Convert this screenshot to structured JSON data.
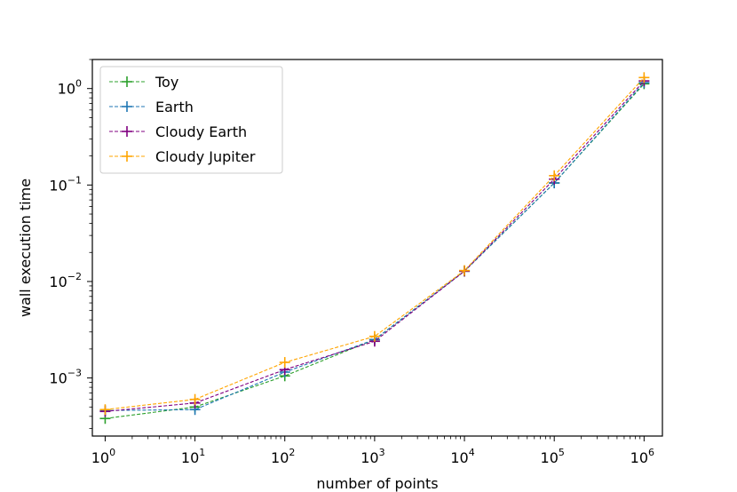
{
  "chart_data": {
    "type": "line",
    "xscale": "log",
    "yscale": "log",
    "xlabel": "number of points",
    "ylabel": "wall execution time",
    "xlim": [
      0.72,
      1600000.0
    ],
    "ylim": [
      0.00025,
      2.0
    ],
    "x_ticks": [
      {
        "value": 1,
        "base": "10",
        "exp": "0"
      },
      {
        "value": 10,
        "base": "10",
        "exp": "1"
      },
      {
        "value": 100,
        "base": "10",
        "exp": "2"
      },
      {
        "value": 1000,
        "base": "10",
        "exp": "3"
      },
      {
        "value": 10000,
        "base": "10",
        "exp": "4"
      },
      {
        "value": 100000,
        "base": "10",
        "exp": "5"
      },
      {
        "value": 1000000,
        "base": "10",
        "exp": "6"
      }
    ],
    "y_ticks": [
      {
        "value": 0.001,
        "base": "10",
        "exp": "−3"
      },
      {
        "value": 0.01,
        "base": "10",
        "exp": "−2"
      },
      {
        "value": 0.1,
        "base": "10",
        "exp": "−1"
      },
      {
        "value": 1,
        "base": "10",
        "exp": "0"
      }
    ],
    "grid": false,
    "legend_position": "top-left",
    "x": [
      1,
      10,
      100,
      1000,
      10000,
      100000,
      1000000
    ],
    "series": [
      {
        "name": "Toy",
        "color": "#2ca02c",
        "values": [
          0.00038,
          0.0005,
          0.00105,
          0.0025,
          0.0128,
          0.105,
          1.12
        ]
      },
      {
        "name": "Earth",
        "color": "#1f77b4",
        "values": [
          0.00046,
          0.00047,
          0.00115,
          0.0025,
          0.0128,
          0.105,
          1.15
        ]
      },
      {
        "name": "Cloudy Earth",
        "color": "#800080",
        "values": [
          0.00045,
          0.00055,
          0.00122,
          0.0024,
          0.0128,
          0.115,
          1.2
        ]
      },
      {
        "name": "Cloudy Jupiter",
        "color": "#ffa500",
        "values": [
          0.00047,
          0.0006,
          0.00145,
          0.0027,
          0.013,
          0.125,
          1.3
        ]
      }
    ]
  }
}
